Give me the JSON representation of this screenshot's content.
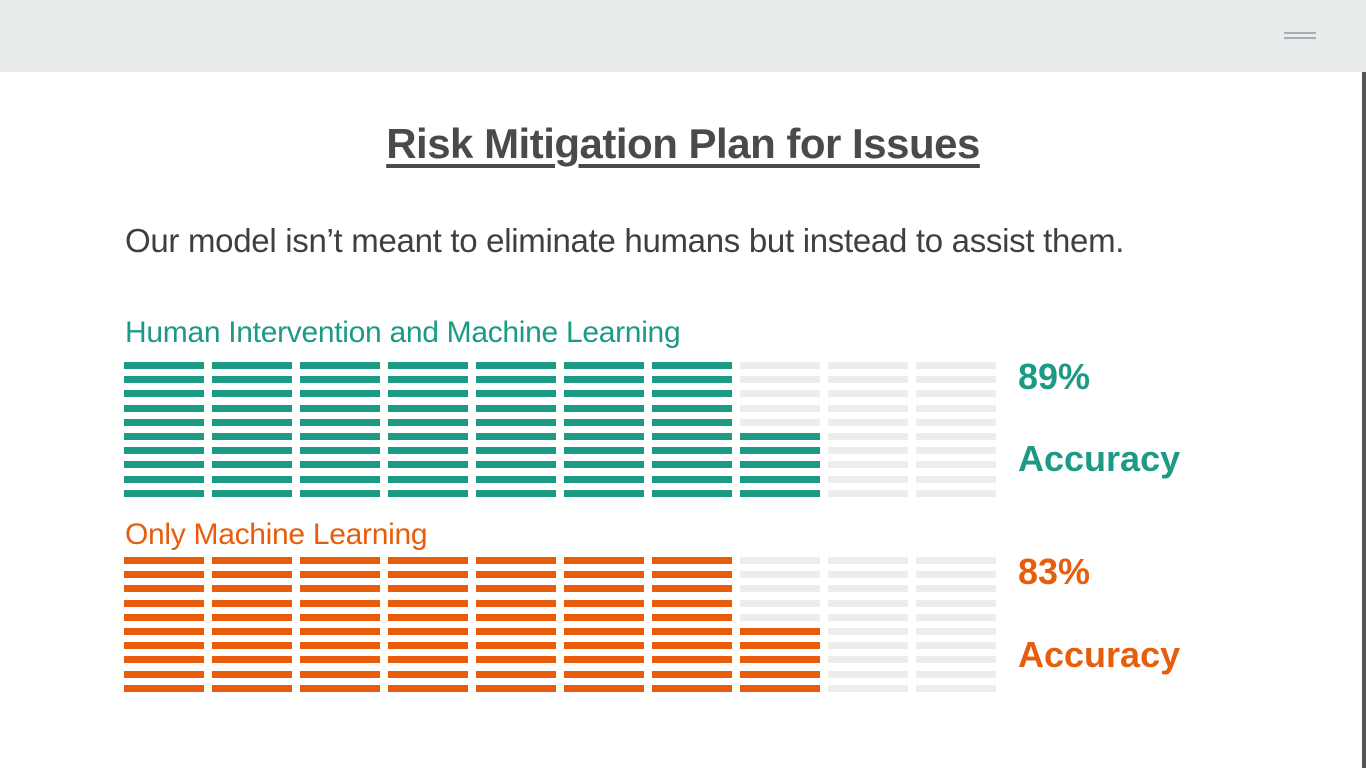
{
  "slide": {
    "title": "Risk Mitigation Plan for Issues",
    "subtitle": "Our model isn’t meant to eliminate humans but instead to assist them."
  },
  "colors": {
    "teal": "#1d9a86",
    "orange": "#e85d0c",
    "empty": "#ededed",
    "topbar": "#e9eced"
  },
  "icons": {
    "menu": "hamburger-menu-icon"
  },
  "comparison": [
    {
      "label": "Human Intervention and Machine Learning",
      "percent_label": "89%",
      "metric_label": "Accuracy",
      "value": 89,
      "color": "#1d9a86"
    },
    {
      "label": "Only Machine Learning",
      "percent_label": "83%",
      "metric_label": "Accuracy",
      "value": 83,
      "color": "#e85d0c"
    }
  ]
}
